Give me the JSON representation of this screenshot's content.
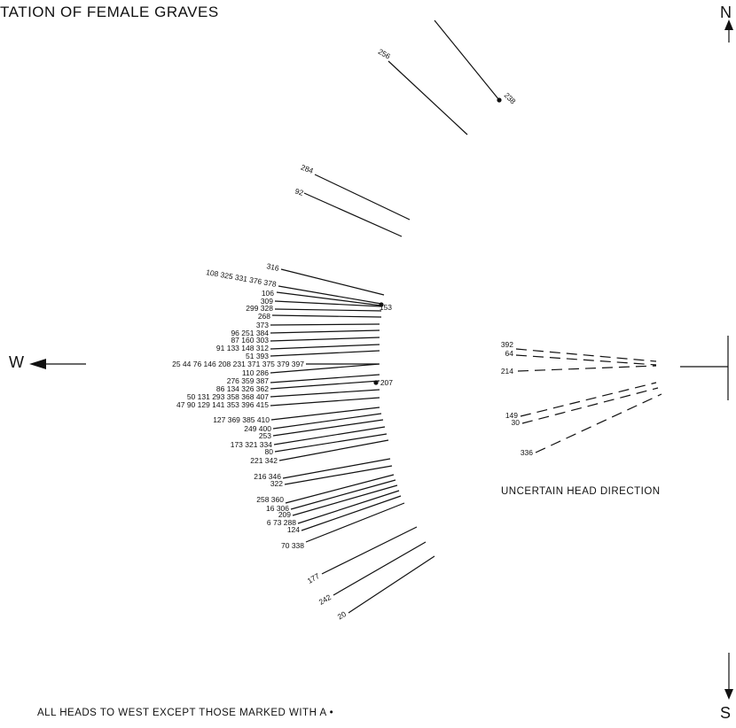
{
  "title": "TATION OF FEMALE GRAVES",
  "compass": {
    "north": "N",
    "south": "S",
    "west": "W"
  },
  "note": "ALL HEADS TO WEST EXCEPT THOSE MARKED WITH A •",
  "uncertain_label": "UNCERTAIN HEAD DIRECTION",
  "west_axis_label": "25 44 76 146 208 231 371 375 379 397",
  "graves": [
    {
      "label": "256",
      "marked": false
    },
    {
      "label": "238",
      "marked": true
    },
    {
      "label": "284",
      "marked": false
    },
    {
      "label": "92",
      "marked": false
    },
    {
      "label": "316",
      "marked": false
    },
    {
      "label": "108 325 331 376 378",
      "marked": false
    },
    {
      "label": "106",
      "marked": false
    },
    {
      "label": "309",
      "marked": false
    },
    {
      "label": "153",
      "marked": true
    },
    {
      "label": "299 328",
      "marked": false
    },
    {
      "label": "268",
      "marked": false
    },
    {
      "label": "373",
      "marked": false
    },
    {
      "label": "96 251 384",
      "marked": false
    },
    {
      "label": "87 160 303",
      "marked": false
    },
    {
      "label": "91 133 148 312",
      "marked": false
    },
    {
      "label": "51 393",
      "marked": false
    },
    {
      "label": "110 286",
      "marked": false
    },
    {
      "label": "276 359 387",
      "marked": false
    },
    {
      "label": "207",
      "marked": true
    },
    {
      "label": "86 134 326 362",
      "marked": false
    },
    {
      "label": "50 131 293 358 368 407",
      "marked": false
    },
    {
      "label": "47 90 129 141 353 396 415",
      "marked": false
    },
    {
      "label": "127 369 385 410",
      "marked": false
    },
    {
      "label": "249 400",
      "marked": false
    },
    {
      "label": "253",
      "marked": false
    },
    {
      "label": "173 321 334",
      "marked": false
    },
    {
      "label": "80",
      "marked": false
    },
    {
      "label": "221 342",
      "marked": false
    },
    {
      "label": "216 346",
      "marked": false
    },
    {
      "label": "322",
      "marked": false
    },
    {
      "label": "258 360",
      "marked": false
    },
    {
      "label": "16 306",
      "marked": false
    },
    {
      "label": "209",
      "marked": false
    },
    {
      "label": "6 73 288",
      "marked": false
    },
    {
      "label": "124",
      "marked": false
    },
    {
      "label": "70 338",
      "marked": false
    },
    {
      "label": "177",
      "marked": false
    },
    {
      "label": "242",
      "marked": false
    },
    {
      "label": "20",
      "marked": false
    }
  ],
  "uncertain_graves": [
    "392",
    "64",
    "214",
    "149",
    "30",
    "336"
  ]
}
